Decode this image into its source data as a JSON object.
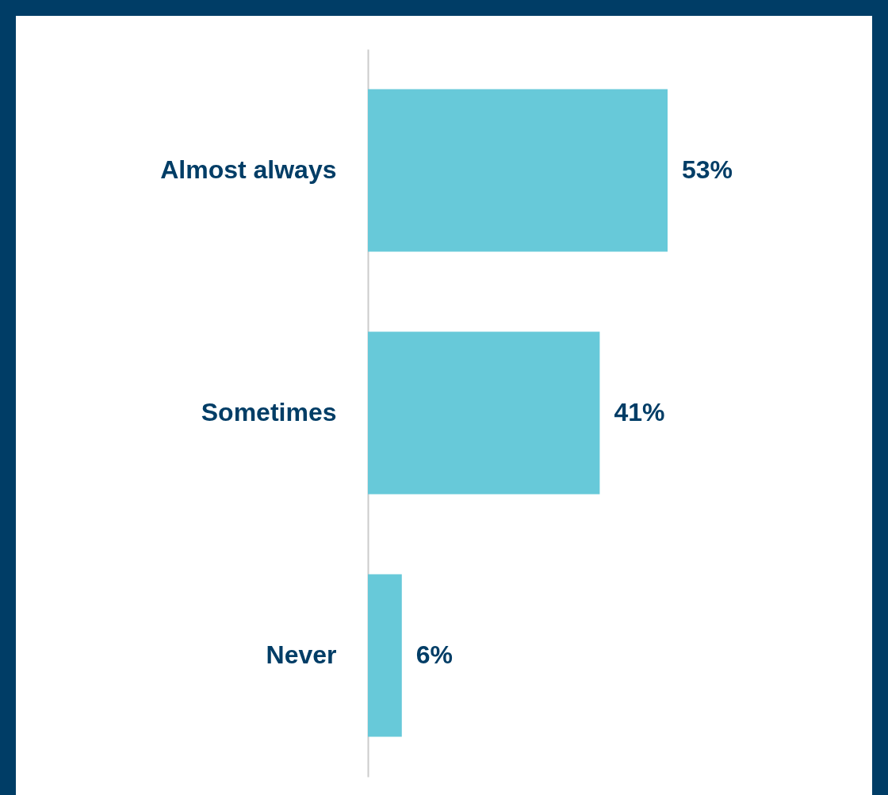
{
  "chart_data": {
    "type": "bar",
    "orientation": "horizontal",
    "categories": [
      "Almost always",
      "Sometimes",
      "Never"
    ],
    "values": [
      53,
      41,
      6
    ],
    "value_labels": [
      "53%",
      "41%",
      "6%"
    ],
    "color": "#67c9d9"
  }
}
